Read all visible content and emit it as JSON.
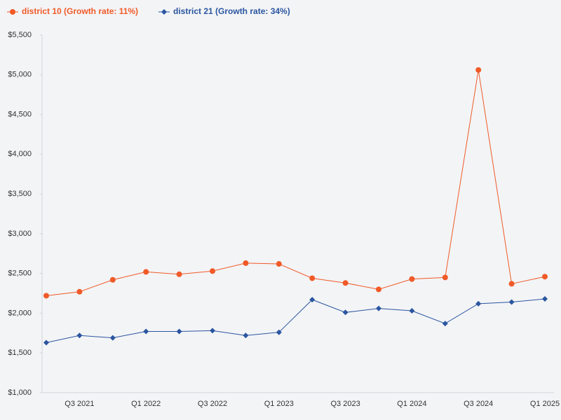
{
  "chart_data": {
    "type": "line",
    "categories": [
      null,
      "Q3 2021",
      null,
      "Q1 2022",
      null,
      "Q3 2022",
      null,
      "Q1 2023",
      null,
      "Q3 2023",
      null,
      "Q1 2024",
      null,
      "Q3 2024",
      null,
      "Q1 2025"
    ],
    "series": [
      {
        "name": "district 10 (Growth rate: 11%)",
        "color": "#f05a28",
        "marker": "circle",
        "values": [
          2220,
          2270,
          2420,
          2520,
          2490,
          2530,
          2630,
          2620,
          2440,
          2380,
          2300,
          2430,
          2450,
          5060,
          2370,
          2460
        ]
      },
      {
        "name": "district 21 (Growth rate: 34%)",
        "color": "#2a55a0",
        "marker": "diamond",
        "values": [
          1630,
          1720,
          1690,
          1770,
          1770,
          1780,
          1720,
          1760,
          2170,
          2010,
          2060,
          2030,
          1870,
          2120,
          2140,
          2180
        ]
      }
    ],
    "ylim": [
      1000,
      5500
    ],
    "yticks": [
      {
        "value": 1000,
        "label": "$1,000"
      },
      {
        "value": 1500,
        "label": "$1,500"
      },
      {
        "value": 2000,
        "label": "$2,000"
      },
      {
        "value": 2500,
        "label": "$2,500"
      },
      {
        "value": 3000,
        "label": "$3,000"
      },
      {
        "value": 3500,
        "label": "$3,500"
      },
      {
        "value": 4000,
        "label": "$4,000"
      },
      {
        "value": 4500,
        "label": "$4,500"
      },
      {
        "value": 5000,
        "label": "$5,000"
      },
      {
        "value": 5500,
        "label": "$5,500"
      }
    ],
    "grid": false
  }
}
